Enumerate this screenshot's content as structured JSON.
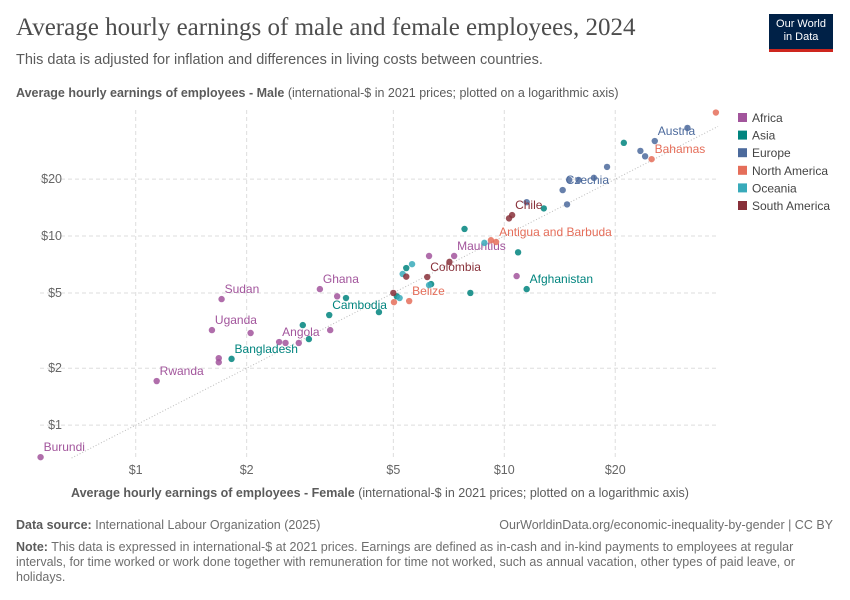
{
  "header": {
    "title": "Average hourly earnings of male and female employees, 2024",
    "subtitle": "This data is adjusted for inflation and differences in living costs between countries.",
    "logo": [
      "Our World",
      "in Data"
    ]
  },
  "chart_data": {
    "type": "scatter",
    "y_label": "Average hourly earnings of employees - Male",
    "y_label_note": "(international-$ in 2021 prices; plotted on a logarithmic axis)",
    "x_label": "Average hourly earnings of employees - Female",
    "x_label_note": "(international-$ in 2021 prices; plotted on a logarithmic axis)",
    "xscale": "log",
    "yscale": "log",
    "grid": true,
    "xlim": [
      0.55,
      38
    ],
    "ylim": [
      0.67,
      46.4
    ],
    "xticks": [
      {
        "value": 1,
        "label": "$1"
      },
      {
        "value": 2,
        "label": "$2"
      },
      {
        "value": 5,
        "label": "$5"
      },
      {
        "value": 10,
        "label": "$10"
      },
      {
        "value": 20,
        "label": "$20"
      }
    ],
    "yticks": [
      {
        "value": 1,
        "label": "$1"
      },
      {
        "value": 2,
        "label": "$2"
      },
      {
        "value": 5,
        "label": "$5"
      },
      {
        "value": 10,
        "label": "$10"
      },
      {
        "value": 20,
        "label": "$20"
      }
    ],
    "legend": "right",
    "series": [
      {
        "name": "Africa",
        "color": "#a2559c",
        "x": [
          0.552,
          1.14,
          1.61,
          1.71,
          2.45,
          3.16,
          7.31,
          1.68,
          1.68,
          2.05,
          2.55,
          2.77,
          3.37,
          10.8,
          3.52,
          6.25
        ],
        "y": [
          0.677,
          1.71,
          3.18,
          4.64,
          2.75,
          5.24,
          7.84,
          2.26,
          2.15,
          3.07,
          2.72,
          2.72,
          3.18,
          6.14,
          4.8,
          7.84
        ],
        "labels": [
          "Burundi",
          "Rwanda",
          "Uganda",
          "Sudan",
          "Angola",
          "Ghana",
          "Mauritius",
          null,
          null,
          null,
          null,
          null,
          null,
          null,
          null,
          null
        ]
      },
      {
        "name": "Asia",
        "color": "#00847e",
        "x": [
          1.82,
          3.35,
          11.5,
          2.84,
          2.95,
          3.72,
          4.57,
          5.42,
          7.8,
          8.09,
          10.9,
          12.8,
          21.1,
          5.11,
          6.33
        ],
        "y": [
          2.24,
          3.82,
          5.24,
          3.38,
          2.85,
          4.7,
          3.96,
          6.77,
          10.9,
          5.0,
          8.2,
          14.0,
          31.1,
          4.8,
          5.57
        ],
        "labels": [
          "Bangladesh",
          "Cambodia",
          "Afghanistan",
          null,
          null,
          null,
          null,
          null,
          null,
          null,
          null,
          null,
          null,
          null,
          null
        ]
      },
      {
        "name": "Europe",
        "color": "#4c6a9c",
        "x": [
          14.4,
          25.6,
          15.0,
          15.9,
          14.8,
          19.0,
          23.4,
          24.1,
          17.5,
          31.4,
          11.5
        ],
        "y": [
          17.5,
          31.8,
          19.8,
          19.8,
          14.7,
          23.2,
          28.2,
          26.4,
          20.3,
          37.3,
          15.1
        ],
        "labels": [
          "Czechia",
          "Austria",
          null,
          null,
          null,
          null,
          null,
          null,
          null,
          null,
          null
        ]
      },
      {
        "name": "North America",
        "color": "#e56e5a",
        "x": [
          5.52,
          9.5,
          25.1,
          5.02,
          9.2,
          37.5
        ],
        "y": [
          4.53,
          9.3,
          25.5,
          4.47,
          9.5,
          45
        ],
        "labels": [
          "Belize",
          "Antigua and Barbuda",
          "Bahamas",
          null,
          null,
          null
        ]
      },
      {
        "name": "Oceania",
        "color": "#38aaba",
        "x": [
          5.62,
          8.83,
          5.2,
          6.25,
          5.3
        ],
        "y": [
          7.1,
          9.2,
          4.7,
          5.5,
          6.3
        ],
        "labels": [
          null,
          null,
          null,
          null,
          null
        ]
      },
      {
        "name": "South America",
        "color": "#883039",
        "x": [
          6.18,
          10.5,
          7.1,
          10.3,
          5.42,
          5.0
        ],
        "y": [
          6.07,
          12.9,
          7.3,
          12.4,
          6.1,
          5.0
        ],
        "labels": [
          "Colombia",
          "Chile",
          null,
          null,
          null,
          null
        ]
      }
    ]
  },
  "footer": {
    "source_label": "Data source:",
    "source": "International Labour Organization (2025)",
    "url": "OurWorldinData.org/economic-inequality-by-gender | CC BY",
    "note_label": "Note:",
    "note": "This data is expressed in international-$ at 2021 prices. Earnings are defined as in-cash and in-kind payments to employees at regular intervals, for time worked or work done together with remuneration for time not worked, such as annual vacation, other types of paid leave, or holidays."
  }
}
